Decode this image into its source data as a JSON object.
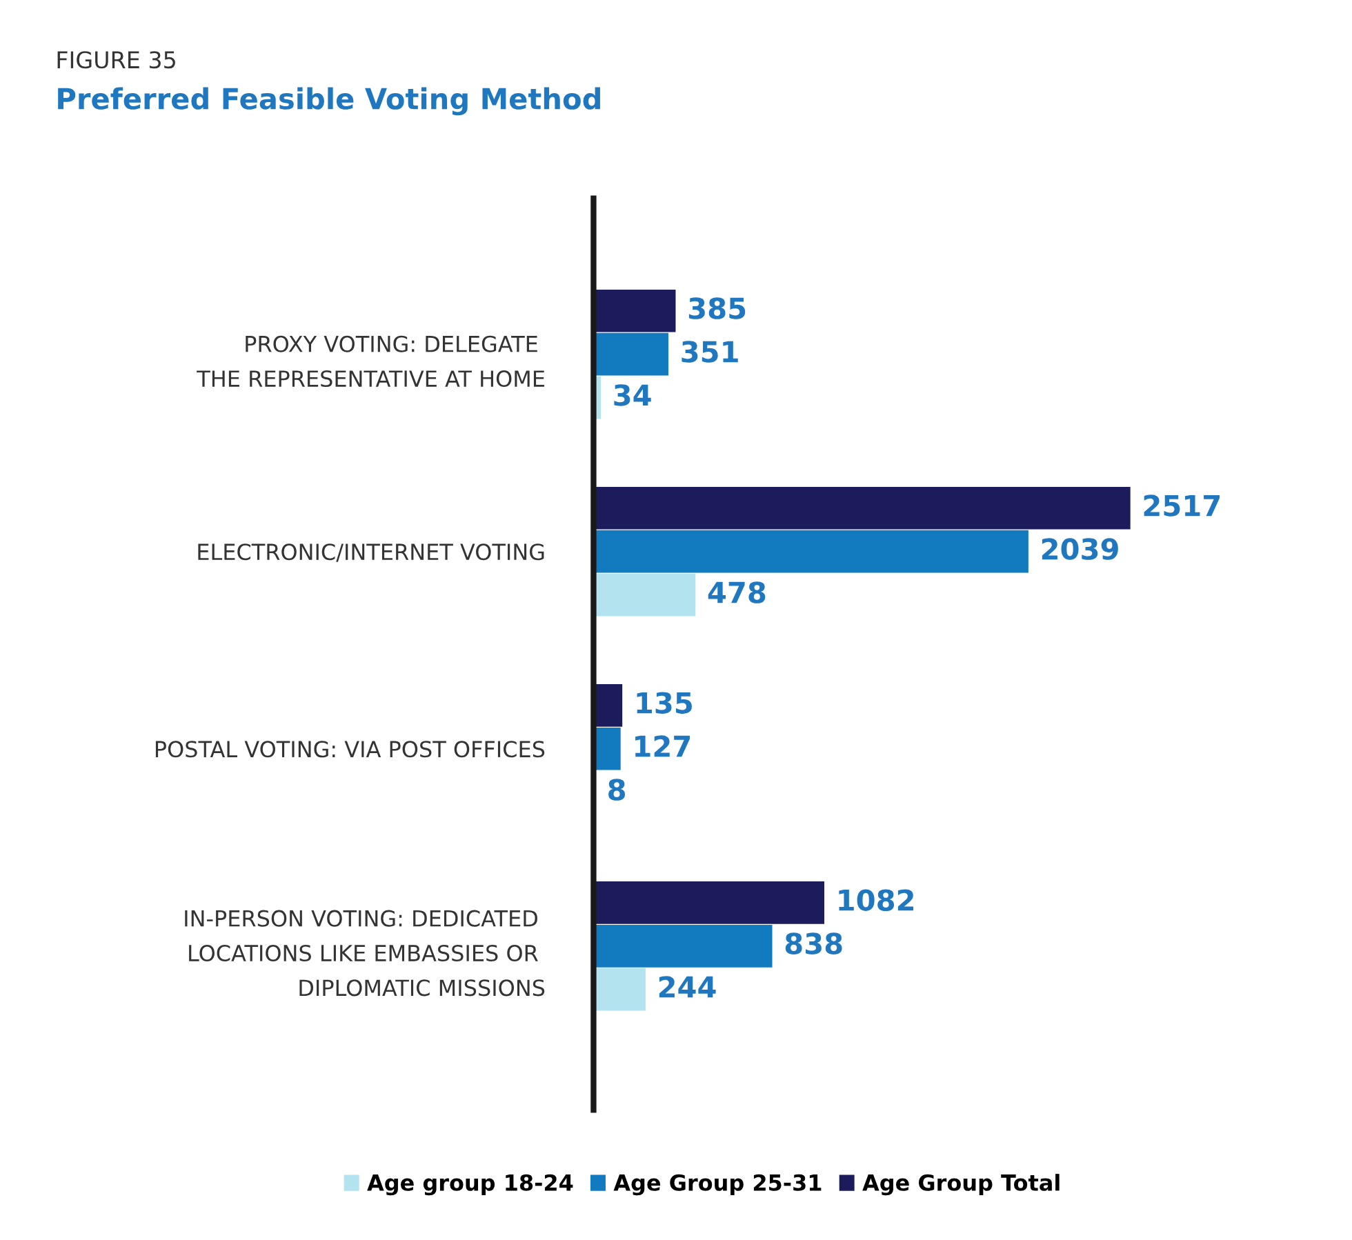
{
  "chart_data": {
    "type": "bar",
    "orientation": "horizontal",
    "subtitle": "FIGURE 35",
    "title": "Preferred Feasible Voting Method",
    "categories": [
      "PROXY VOTING: DELEGATE \nTHE REPRESENTATIVE AT HOME",
      "ELECTRONIC/INTERNET VOTING",
      "POSTAL VOTING: VIA POST OFFICES",
      "IN-PERSON VOTING: DEDICATED \nLOCATIONS LIKE EMBASSIES OR \nDIPLOMATIC MISSIONS"
    ],
    "series": [
      {
        "name": "Age group 18-24",
        "color": "#b3e3ef",
        "values": [
          34,
          478,
          8,
          244
        ]
      },
      {
        "name": "Age Group 25-31",
        "color": "#127abf",
        "values": [
          351,
          2039,
          127,
          838
        ]
      },
      {
        "name": "Age Group Total",
        "color": "#1c1c5c",
        "values": [
          385,
          2517,
          135,
          1082
        ]
      }
    ],
    "data_labels": true,
    "legend": "bottom",
    "grid": false,
    "tick_labels": "y"
  }
}
